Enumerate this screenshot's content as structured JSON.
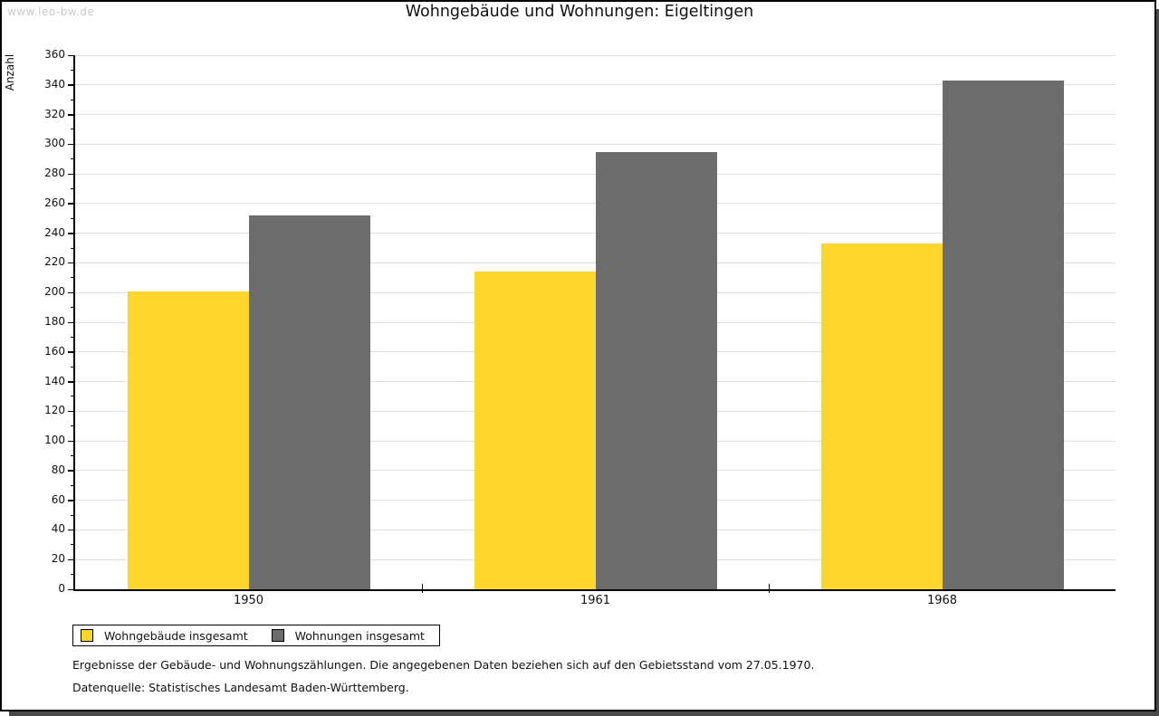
{
  "watermark": "www.leo-bw.de",
  "title": "Wohngebäude und Wohnungen: Eigeltingen",
  "chart_data": {
    "type": "bar",
    "title": "Wohngebäude und Wohnungen: Eigeltingen",
    "ylabel": "Anzahl",
    "xlabel": "",
    "categories": [
      "1950",
      "1961",
      "1968"
    ],
    "series": [
      {
        "name": "Wohngebäude insgesamt",
        "color": "#FCD52D",
        "values": [
          201,
          214,
          233
        ]
      },
      {
        "name": "Wohnungen insgesamt",
        "color": "#6C6C6C",
        "values": [
          252,
          295,
          343
        ]
      }
    ],
    "ylim": [
      0,
      360
    ],
    "ytick_major": 20,
    "ytick_minor": 10,
    "grid": true,
    "legend_position": "bottom-left"
  },
  "footnotes": {
    "line1": "Ergebnisse der Gebäude- und Wohnungszählungen. Die angegebenen Daten beziehen sich auf den Gebietsstand vom 27.05.1970.",
    "line2": "Datenquelle: Statistisches Landesamt Baden-Württemberg."
  },
  "colors": {
    "bar_yellow": "#FCD52D",
    "bar_gray": "#6C6C6C",
    "gridline": "#E0E0E0",
    "axis": "#000000",
    "watermark": "#C9C9C9",
    "frame_shadow": "#4A4A4A"
  }
}
